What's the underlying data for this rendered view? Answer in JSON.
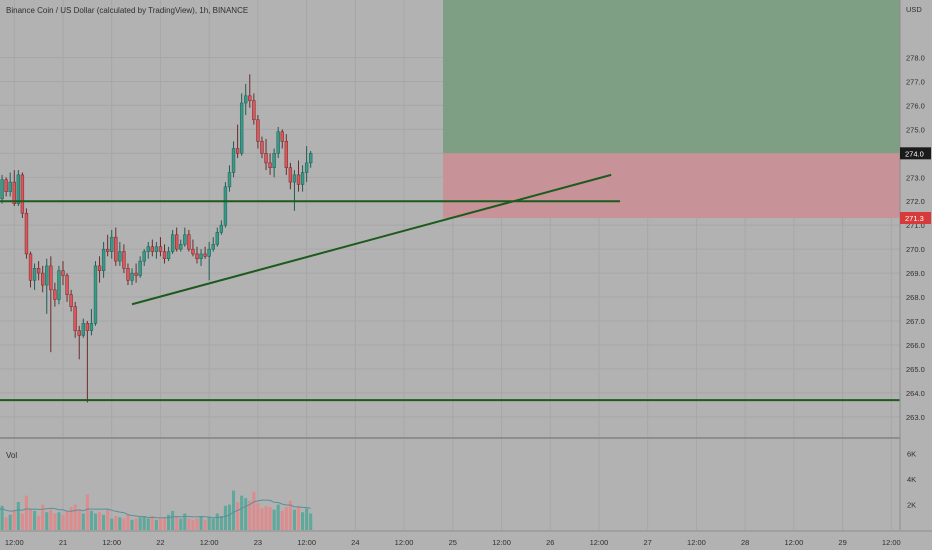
{
  "header": {
    "symbol_title": "Binance Coin / US Dollar (calculated by TradingView), 1h, BINANCE",
    "currency": "USD"
  },
  "volume_pane": {
    "label": "Vol"
  },
  "colors": {
    "background": "#b2b2b2",
    "up": "#3a9a89",
    "down": "#e0555a",
    "trendline": "#1d5a1d",
    "profit_zone": "#7e9f83",
    "loss_zone": "#c79298",
    "current_price_badge": "#1a1a1a",
    "stop_badge": "#d63a3a"
  },
  "chart_data": [
    {
      "type": "candlestick",
      "title": "Binance Coin / US Dollar (calculated by TradingView), 1h, BINANCE",
      "y_unit": "USD",
      "ylim": [
        262.2,
        280.4
      ],
      "y_ticks": [
        "263.0",
        "264.0",
        "265.0",
        "266.0",
        "267.0",
        "268.0",
        "269.0",
        "270.0",
        "271.0",
        "272.0",
        "273.0",
        "274.0",
        "275.0",
        "276.0",
        "277.0",
        "278.0"
      ],
      "x_ticks": [
        "12:00",
        "21",
        "12:00",
        "22",
        "12:00",
        "23",
        "12:00",
        "24",
        "12:00",
        "25",
        "12:00",
        "26",
        "12:00",
        "27",
        "12:00",
        "28",
        "12:00",
        "29",
        "12:00"
      ],
      "grid": true,
      "current_price": "274.0",
      "stop_price": "271.3",
      "position_zones": [
        {
          "kind": "target",
          "from": 274.0,
          "to": 280.4
        },
        {
          "kind": "stop",
          "from": 271.3,
          "to": 274.0
        }
      ],
      "horizontal_lines": [
        272.0,
        263.7
      ],
      "trendlines": [
        {
          "from": [
            "2021-02-21 17:00",
            267.7
          ],
          "to": [
            "2021-02-26 15:00",
            273.1
          ]
        },
        {
          "from": [
            "2021-02-20 06:00",
            272.0
          ],
          "to": [
            "2021-02-26 15:00",
            272.0
          ]
        }
      ],
      "candles_ohlc": [
        [
          271.8,
          272.2,
          271.5,
          271.7
        ],
        [
          271.7,
          272.0,
          271.4,
          271.6
        ],
        [
          271.6,
          272.3,
          271.5,
          272.1
        ],
        [
          272.1,
          273.1,
          271.9,
          272.9
        ],
        [
          272.9,
          273.0,
          272.2,
          272.4
        ],
        [
          272.4,
          273.2,
          272.2,
          272.8
        ],
        [
          272.8,
          273.3,
          271.8,
          271.9
        ],
        [
          271.9,
          273.3,
          271.8,
          273.1
        ],
        [
          273.1,
          273.2,
          271.3,
          271.5
        ],
        [
          271.5,
          271.7,
          269.6,
          269.8
        ],
        [
          269.8,
          269.9,
          268.4,
          268.7
        ],
        [
          268.7,
          269.4,
          268.3,
          269.2
        ],
        [
          269.2,
          269.5,
          268.7,
          269.0
        ],
        [
          269.0,
          269.3,
          268.2,
          268.5
        ],
        [
          268.5,
          269.6,
          267.3,
          269.3
        ],
        [
          269.3,
          269.7,
          265.7,
          268.3
        ],
        [
          268.3,
          268.6,
          267.6,
          267.9
        ],
        [
          267.9,
          269.3,
          267.7,
          269.1
        ],
        [
          269.1,
          269.5,
          268.5,
          268.9
        ],
        [
          268.9,
          269.0,
          267.8,
          268.1
        ],
        [
          268.1,
          268.3,
          267.4,
          267.6
        ],
        [
          267.6,
          267.8,
          266.3,
          266.6
        ],
        [
          266.6,
          266.8,
          265.4,
          266.4
        ],
        [
          266.4,
          267.1,
          266.3,
          266.9
        ],
        [
          266.9,
          267.0,
          263.6,
          266.6
        ],
        [
          266.6,
          267.5,
          266.4,
          266.9
        ],
        [
          266.9,
          269.5,
          266.8,
          269.3
        ],
        [
          269.3,
          269.7,
          268.6,
          269.1
        ],
        [
          269.1,
          270.3,
          268.8,
          270.0
        ],
        [
          270.0,
          270.6,
          269.7,
          269.9
        ],
        [
          269.9,
          270.8,
          269.6,
          270.5
        ],
        [
          270.5,
          270.9,
          269.3,
          269.5
        ],
        [
          269.5,
          270.3,
          269.3,
          269.9
        ],
        [
          269.9,
          270.2,
          269.0,
          269.2
        ],
        [
          269.2,
          269.4,
          268.5,
          268.7
        ],
        [
          268.7,
          269.2,
          268.5,
          269.0
        ],
        [
          269.0,
          269.4,
          268.6,
          268.9
        ],
        [
          268.9,
          269.7,
          268.8,
          269.5
        ],
        [
          269.5,
          270.0,
          269.3,
          269.9
        ],
        [
          269.9,
          270.3,
          269.6,
          270.1
        ],
        [
          270.1,
          270.4,
          269.7,
          269.9
        ],
        [
          269.9,
          270.3,
          269.6,
          270.1
        ],
        [
          270.1,
          270.5,
          269.7,
          269.9
        ],
        [
          269.9,
          270.2,
          269.4,
          269.6
        ],
        [
          269.6,
          270.1,
          269.5,
          269.9
        ],
        [
          269.9,
          270.8,
          269.8,
          270.6
        ],
        [
          270.6,
          270.9,
          269.9,
          270.0
        ],
        [
          270.0,
          270.4,
          269.9,
          270.2
        ],
        [
          270.2,
          270.9,
          270.1,
          270.6
        ],
        [
          270.6,
          270.8,
          269.9,
          270.0
        ],
        [
          270.0,
          270.4,
          269.7,
          269.8
        ],
        [
          269.8,
          270.1,
          269.4,
          269.6
        ],
        [
          269.6,
          270.0,
          269.3,
          269.8
        ],
        [
          269.8,
          270.1,
          269.6,
          269.7
        ],
        [
          269.7,
          270.3,
          268.7,
          270.0
        ],
        [
          270.0,
          270.5,
          269.9,
          270.2
        ],
        [
          270.2,
          270.9,
          270.1,
          270.7
        ],
        [
          270.7,
          271.2,
          270.6,
          271.0
        ],
        [
          271.0,
          272.8,
          270.9,
          272.6
        ],
        [
          272.6,
          273.5,
          272.4,
          273.2
        ],
        [
          273.2,
          274.5,
          273.0,
          274.2
        ],
        [
          274.2,
          275.2,
          273.8,
          274.0
        ],
        [
          274.0,
          276.5,
          273.9,
          276.1
        ],
        [
          276.1,
          276.9,
          275.6,
          276.4
        ],
        [
          276.4,
          277.3,
          275.9,
          276.2
        ],
        [
          276.2,
          276.5,
          275.2,
          275.4
        ],
        [
          275.4,
          275.6,
          274.2,
          274.5
        ],
        [
          274.5,
          274.7,
          273.8,
          274.0
        ],
        [
          274.0,
          274.6,
          273.3,
          273.6
        ],
        [
          273.6,
          274.0,
          273.1,
          273.4
        ],
        [
          273.4,
          274.2,
          273.0,
          274.0
        ],
        [
          274.0,
          275.1,
          273.8,
          274.9
        ],
        [
          274.9,
          275.0,
          274.2,
          274.5
        ],
        [
          274.5,
          274.8,
          273.1,
          273.4
        ],
        [
          273.4,
          273.6,
          272.5,
          272.8
        ],
        [
          272.8,
          273.3,
          271.6,
          273.1
        ],
        [
          273.1,
          273.7,
          272.4,
          272.7
        ],
        [
          272.7,
          273.5,
          272.4,
          273.2
        ],
        [
          273.2,
          274.3,
          272.8,
          273.6
        ],
        [
          273.6,
          274.1,
          273.4,
          274.0
        ]
      ],
      "volume_ticks": [
        "2K",
        "4K",
        "6K"
      ],
      "volume": [
        2.1,
        1.4,
        1.3,
        1.9,
        1.0,
        1.2,
        1.6,
        2.2,
        1.3,
        2.7,
        1.7,
        1.5,
        1.1,
        2.0,
        1.4,
        1.6,
        1.3,
        1.4,
        1.2,
        1.5,
        1.8,
        2.0,
        1.6,
        1.3,
        2.8,
        1.5,
        1.3,
        1.4,
        1.2,
        1.6,
        0.9,
        1.1,
        1.0,
        0.9,
        1.2,
        0.8,
        0.9,
        1.0,
        1.1,
        0.9,
        1.1,
        0.8,
        0.9,
        1.0,
        1.2,
        1.5,
        1.0,
        0.9,
        1.3,
        0.9,
        0.8,
        0.9,
        1.1,
        0.8,
        1.0,
        0.9,
        1.3,
        1.1,
        1.9,
        2.0,
        3.1,
        2.2,
        2.7,
        2.5,
        2.3,
        3.0,
        2.1,
        1.7,
        1.9,
        1.8,
        1.6,
        2.0,
        1.5,
        1.8,
        2.3,
        1.6,
        1.9,
        1.4,
        1.7,
        1.3
      ]
    }
  ]
}
